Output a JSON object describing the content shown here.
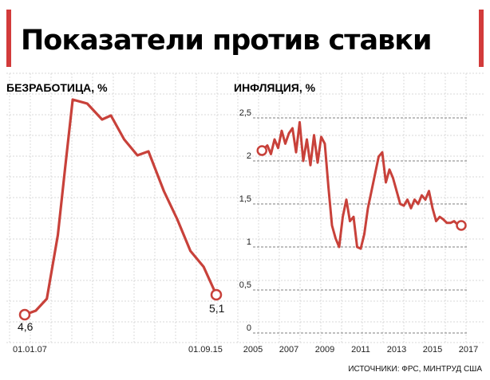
{
  "title": "Показатели против ставки",
  "source": "ИСТОЧНИКИ: ФРС, МИНТРУД США",
  "colors": {
    "line": "#c8413a",
    "grid": "#cccccc",
    "title_bar": "#d23b3b"
  },
  "chart_data": [
    {
      "type": "line",
      "title": "БЕЗРАБОТИЦА, %",
      "x_start_label": "01.01.07",
      "x_end_label": "01.09.15",
      "start_value_label": "4,6",
      "end_value_label": "5,1",
      "ylim": [
        4.3,
        10.5
      ],
      "x": [
        2007.0,
        2007.5,
        2008.0,
        2008.5,
        2008.83,
        2009.17,
        2009.83,
        2010.5,
        2010.9,
        2011.5,
        2012.1,
        2012.6,
        2013.3,
        2013.9,
        2014.5,
        2015.1,
        2015.67
      ],
      "values": [
        4.6,
        4.7,
        5.0,
        6.6,
        8.3,
        10.0,
        9.9,
        9.5,
        9.6,
        9.0,
        8.6,
        8.7,
        7.7,
        7.0,
        6.2,
        5.8,
        5.1
      ]
    },
    {
      "type": "line",
      "title": "ИНФЛЯЦИЯ, %",
      "x_tick_labels": [
        "2005",
        "2007",
        "2009",
        "2011",
        "2013",
        "2015",
        "2017"
      ],
      "y_tick_labels": [
        "0",
        "0,5",
        "1",
        "1,5",
        "2",
        "2,5"
      ],
      "xlim": [
        2005,
        2017
      ],
      "ylim": [
        0,
        2.5
      ],
      "x": [
        2005.5,
        2005.8,
        2006.0,
        2006.2,
        2006.4,
        2006.6,
        2006.8,
        2007.0,
        2007.2,
        2007.4,
        2007.6,
        2007.8,
        2008.0,
        2008.2,
        2008.4,
        2008.6,
        2008.8,
        2009.0,
        2009.2,
        2009.4,
        2009.6,
        2009.8,
        2010.0,
        2010.2,
        2010.4,
        2010.6,
        2010.8,
        2011.0,
        2011.2,
        2011.4,
        2011.6,
        2011.8,
        2012.0,
        2012.2,
        2012.4,
        2012.6,
        2012.8,
        2013.0,
        2013.2,
        2013.4,
        2013.6,
        2013.8,
        2014.0,
        2014.2,
        2014.4,
        2014.6,
        2014.8,
        2015.0,
        2015.2,
        2015.4,
        2015.6,
        2015.8,
        2016.0,
        2016.2,
        2016.4,
        2016.6
      ],
      "values": [
        2.12,
        2.18,
        2.08,
        2.25,
        2.15,
        2.35,
        2.2,
        2.32,
        2.38,
        2.1,
        2.45,
        2.0,
        2.25,
        1.95,
        2.3,
        1.98,
        2.28,
        2.2,
        1.7,
        1.25,
        1.1,
        1.0,
        1.35,
        1.55,
        1.3,
        1.35,
        1.0,
        0.98,
        1.15,
        1.45,
        1.65,
        1.85,
        2.05,
        2.1,
        1.75,
        1.9,
        1.8,
        1.65,
        1.5,
        1.48,
        1.55,
        1.45,
        1.55,
        1.5,
        1.6,
        1.55,
        1.65,
        1.45,
        1.3,
        1.35,
        1.32,
        1.28,
        1.28,
        1.3,
        1.26,
        1.25
      ]
    }
  ]
}
